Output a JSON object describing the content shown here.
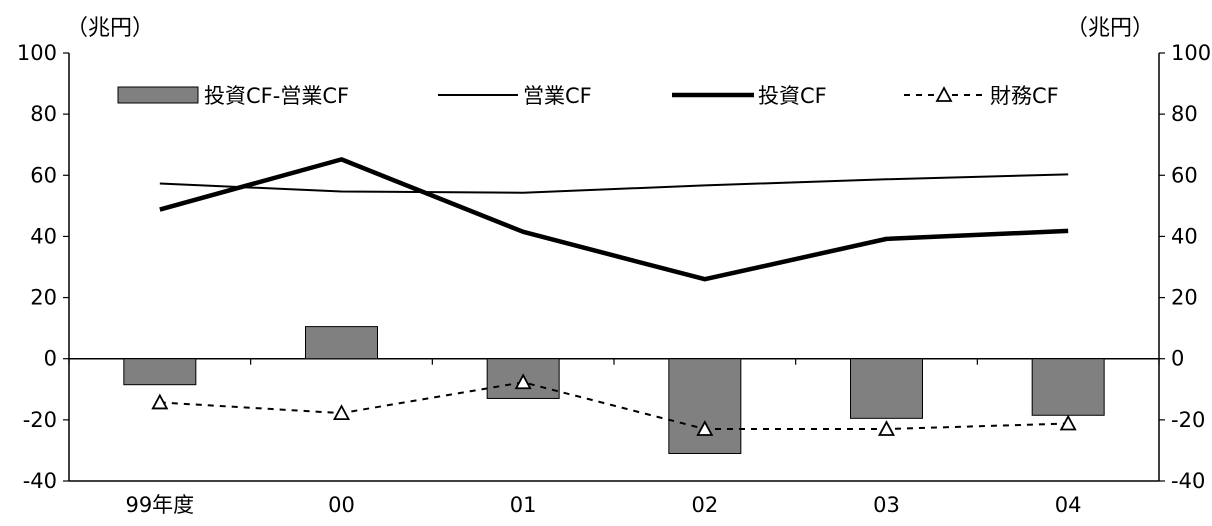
{
  "chart_data": {
    "type": "bar",
    "unit_left": "（兆円）",
    "unit_right": "（兆円）",
    "categories": [
      "99年度",
      "00",
      "01",
      "02",
      "03",
      "04"
    ],
    "ylim": [
      -40,
      100
    ],
    "yticks": [
      -40,
      -20,
      0,
      20,
      40,
      60,
      80,
      100
    ],
    "y2lim": [
      -40,
      100
    ],
    "legend_position": "top",
    "grid": false,
    "series": [
      {
        "name": "投資CF-営業CF",
        "kind": "bar",
        "color": "#808080",
        "values": [
          -8.5,
          10.5,
          -13,
          -31,
          -19.5,
          -18.5
        ]
      },
      {
        "name": "営業CF",
        "kind": "line-thin",
        "color": "#000000",
        "values": [
          57.3,
          54.7,
          54.3,
          56.7,
          58.7,
          60.3
        ]
      },
      {
        "name": "投資CF",
        "kind": "line-thick",
        "color": "#000000",
        "values": [
          48.8,
          65.2,
          41.5,
          26.0,
          39.2,
          41.8
        ]
      },
      {
        "name": "財務CF",
        "kind": "line-dashed-triangle",
        "color": "#000000",
        "values": [
          -14.3,
          -17.8,
          -7.7,
          -23.0,
          -23.0,
          -21.2
        ]
      }
    ]
  }
}
